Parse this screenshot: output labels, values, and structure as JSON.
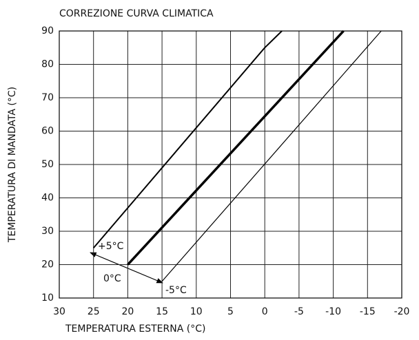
{
  "chart_data": {
    "type": "line",
    "title": "CORREZIONE CURVA CLIMATICA",
    "xlabel": "TEMPERATURA ESTERNA (°C)",
    "ylabel": "TEMPERATURA DI MANDATA (°C)",
    "xlim": [
      30,
      -20
    ],
    "ylim": [
      10,
      90
    ],
    "xticks": [
      30,
      25,
      20,
      15,
      10,
      5,
      0,
      -5,
      -10,
      -15,
      -20
    ],
    "yticks": [
      10,
      20,
      30,
      40,
      50,
      60,
      70,
      80,
      90
    ],
    "grid": true,
    "series": [
      {
        "name": "+5°C",
        "color": "#000000",
        "x": [
          25,
          0,
          -2.5
        ],
        "values": [
          25,
          85,
          90
        ]
      },
      {
        "name": "0°C",
        "color": "#000000",
        "x": [
          20,
          -11.5
        ],
        "values": [
          20,
          90
        ]
      },
      {
        "name": "-5°C",
        "color": "#000000",
        "x": [
          15,
          -17
        ],
        "values": [
          15,
          90
        ]
      }
    ]
  }
}
